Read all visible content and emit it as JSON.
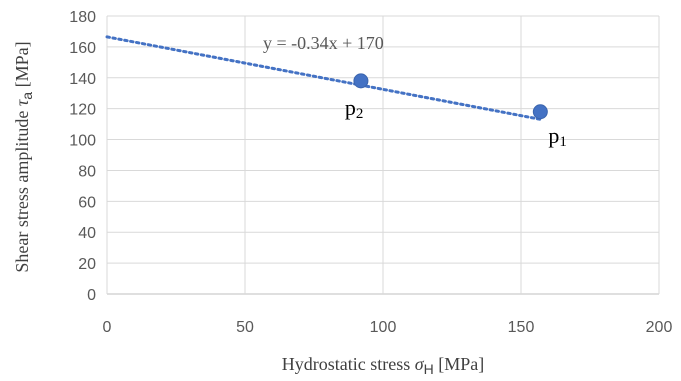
{
  "chart_data": {
    "type": "scatter",
    "xlabel_text": "Hydrostatic stress ",
    "xlabel_symbol": "σ",
    "xlabel_subscript": "H",
    "xlabel_unit": "  [MPa]",
    "ylabel_text": "Shear stress amplitude ",
    "ylabel_symbol": "τ",
    "ylabel_subscript": "a",
    "ylabel_unit": "  [MPa]",
    "xlim": [
      0,
      200
    ],
    "ylim": [
      0,
      180
    ],
    "x_ticks": [
      "0",
      "50",
      "100",
      "150",
      "200"
    ],
    "y_ticks": [
      "0",
      "20",
      "40",
      "60",
      "80",
      "100",
      "120",
      "140",
      "160",
      "180"
    ],
    "grid": true,
    "series": [
      {
        "points": [
          {
            "label_base": "p",
            "label_sub": "2",
            "x": 92,
            "y": 138
          },
          {
            "label_base": "p",
            "label_sub": "1",
            "x": 157,
            "y": 118
          }
        ],
        "color": "#4472C4"
      }
    ],
    "trendline": {
      "equation": "y = -0.34x + 170",
      "slope": -0.34,
      "intercept": 166.5,
      "x_start": 0,
      "x_end": 157,
      "color": "#4472C4",
      "style": "dotted"
    }
  }
}
